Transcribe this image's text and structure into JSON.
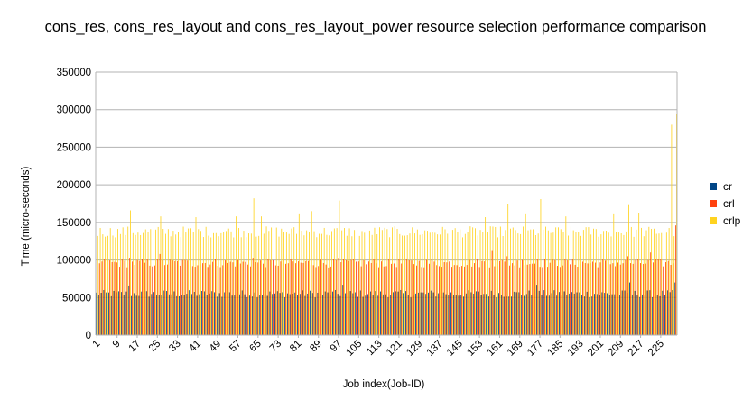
{
  "chart_data": {
    "type": "bar",
    "title": "cons_res, cons_res_layout and cons_res_layout_power resource selection performance comparison",
    "xlabel": "Job index(Job-ID)",
    "ylabel": "Time (micro-seconds)",
    "ylim": [
      0,
      350000
    ],
    "ytick_step": 50000,
    "y_tick_labels": [
      "0",
      "50000",
      "100000",
      "150000",
      "200000",
      "250000",
      "300000",
      "350000"
    ],
    "x_first": 1,
    "x_last": 231,
    "x_tick_labels": [
      "1",
      "9",
      "17",
      "25",
      "33",
      "41",
      "49",
      "57",
      "65",
      "73",
      "81",
      "89",
      "97",
      "105",
      "113",
      "121",
      "129",
      "137",
      "145",
      "153",
      "161",
      "169",
      "177",
      "185",
      "193",
      "201",
      "209",
      "217",
      "225"
    ],
    "grid": "horizontal",
    "legend_position": "right",
    "series": [
      {
        "name": "cr",
        "color": "#004586",
        "typical_range": [
          50000,
          60000
        ],
        "peaks": [
          {
            "x": 14,
            "y": 66000
          },
          {
            "x": 99,
            "y": 67000
          },
          {
            "x": 176,
            "y": 67000
          },
          {
            "x": 213,
            "y": 70000
          },
          {
            "x": 231,
            "y": 70000
          }
        ]
      },
      {
        "name": "crl",
        "color": "#ff420e",
        "typical_range": [
          90000,
          102000
        ],
        "peaks": [
          {
            "x": 14,
            "y": 103000
          },
          {
            "x": 26,
            "y": 108000
          },
          {
            "x": 63,
            "y": 103000
          },
          {
            "x": 97,
            "y": 103000
          },
          {
            "x": 158,
            "y": 112000
          },
          {
            "x": 164,
            "y": 105000
          },
          {
            "x": 170,
            "y": 100000
          },
          {
            "x": 176,
            "y": 101000
          },
          {
            "x": 212,
            "y": 105000
          },
          {
            "x": 221,
            "y": 110000
          },
          {
            "x": 231,
            "y": 146000
          }
        ]
      },
      {
        "name": "crlp",
        "color": "#ffd320",
        "typical_range": [
          130000,
          145000
        ],
        "peaks": [
          {
            "x": 14,
            "y": 166000
          },
          {
            "x": 26,
            "y": 158000
          },
          {
            "x": 40,
            "y": 157000
          },
          {
            "x": 56,
            "y": 158000
          },
          {
            "x": 63,
            "y": 182000
          },
          {
            "x": 66,
            "y": 158000
          },
          {
            "x": 81,
            "y": 162000
          },
          {
            "x": 86,
            "y": 165000
          },
          {
            "x": 97,
            "y": 179000
          },
          {
            "x": 155,
            "y": 157000
          },
          {
            "x": 164,
            "y": 174000
          },
          {
            "x": 171,
            "y": 162000
          },
          {
            "x": 177,
            "y": 181000
          },
          {
            "x": 187,
            "y": 158000
          },
          {
            "x": 206,
            "y": 162000
          },
          {
            "x": 212,
            "y": 173000
          },
          {
            "x": 216,
            "y": 163000
          },
          {
            "x": 229,
            "y": 280000
          },
          {
            "x": 231,
            "y": 294000
          }
        ]
      }
    ]
  }
}
